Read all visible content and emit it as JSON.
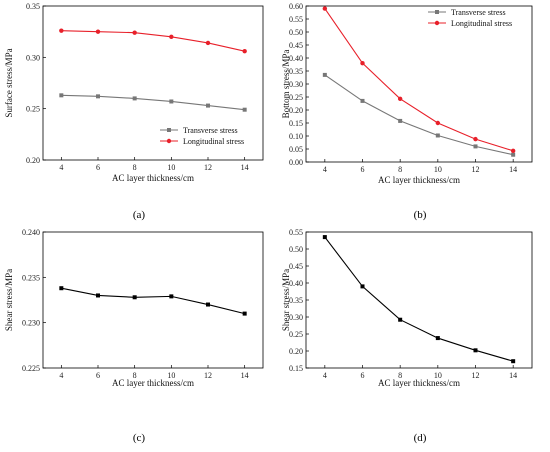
{
  "chart_data": [
    {
      "type": "line",
      "panel_label": "(a)",
      "xlabel": "AC layer thickness/cm",
      "ylabel": "Surface stress/MPa",
      "x": [
        4,
        6,
        8,
        10,
        12,
        14
      ],
      "xticks": [
        "4",
        "6",
        "8",
        "10",
        "12",
        "14"
      ],
      "xlim": [
        3,
        15
      ],
      "ylim": [
        0.2,
        0.35
      ],
      "yticks": [
        "0.20",
        "0.25",
        "0.30",
        "0.35"
      ],
      "legend_position": "lower-right",
      "grid": false,
      "series": [
        {
          "name": "Transverse stress",
          "values": [
            0.263,
            0.262,
            0.26,
            0.257,
            0.253,
            0.249
          ],
          "color": "#777777",
          "marker": "square"
        },
        {
          "name": "Longitudinal stress",
          "values": [
            0.326,
            0.325,
            0.324,
            0.32,
            0.314,
            0.306
          ],
          "color": "#e8202a",
          "marker": "circle"
        }
      ]
    },
    {
      "type": "line",
      "panel_label": "(b)",
      "xlabel": "AC layer thickness/cm",
      "ylabel": "Bottom stress/MPa",
      "x": [
        4,
        6,
        8,
        10,
        12,
        14
      ],
      "xticks": [
        "4",
        "6",
        "8",
        "10",
        "12",
        "14"
      ],
      "xlim": [
        3,
        15
      ],
      "ylim": [
        0.0,
        0.6
      ],
      "yticks": [
        "0.00",
        "0.05",
        "0.10",
        "0.15",
        "0.20",
        "0.25",
        "0.30",
        "0.35",
        "0.40",
        "0.45",
        "0.50",
        "0.55",
        "0.60"
      ],
      "legend_position": "top-right",
      "grid": false,
      "series": [
        {
          "name": "Transverse stress",
          "values": [
            0.335,
            0.235,
            0.158,
            0.102,
            0.06,
            0.028
          ],
          "color": "#777777",
          "marker": "square"
        },
        {
          "name": "Longitudinal stress",
          "values": [
            0.59,
            0.38,
            0.243,
            0.15,
            0.088,
            0.043
          ],
          "color": "#e8202a",
          "marker": "circle"
        }
      ]
    },
    {
      "type": "line",
      "panel_label": "(c)",
      "xlabel": "AC layer thickness/cm",
      "ylabel": "Shear stress/MPa",
      "x": [
        4,
        6,
        8,
        10,
        12,
        14
      ],
      "xticks": [
        "4",
        "6",
        "8",
        "10",
        "12",
        "14"
      ],
      "xlim": [
        3,
        15
      ],
      "ylim": [
        0.225,
        0.24
      ],
      "yticks": [
        "0.225",
        "0.230",
        "0.235",
        "0.240"
      ],
      "legend_position": "none",
      "grid": false,
      "series": [
        {
          "name": "",
          "values": [
            0.2338,
            0.233,
            0.2328,
            0.2329,
            0.232,
            0.231
          ],
          "color": "#000000",
          "marker": "square"
        }
      ]
    },
    {
      "type": "line",
      "panel_label": "(d)",
      "xlabel": "AC layer thickness/cm",
      "ylabel": "Shear stress/MPa",
      "x": [
        4,
        6,
        8,
        10,
        12,
        14
      ],
      "xticks": [
        "4",
        "6",
        "8",
        "10",
        "12",
        "14"
      ],
      "xlim": [
        3,
        15
      ],
      "ylim": [
        0.15,
        0.55
      ],
      "yticks": [
        "0.15",
        "0.20",
        "0.25",
        "0.30",
        "0.35",
        "0.40",
        "0.45",
        "0.50",
        "0.55"
      ],
      "legend_position": "none",
      "grid": false,
      "series": [
        {
          "name": "",
          "values": [
            0.535,
            0.39,
            0.292,
            0.238,
            0.202,
            0.17
          ],
          "color": "#000000",
          "marker": "square"
        }
      ]
    }
  ]
}
